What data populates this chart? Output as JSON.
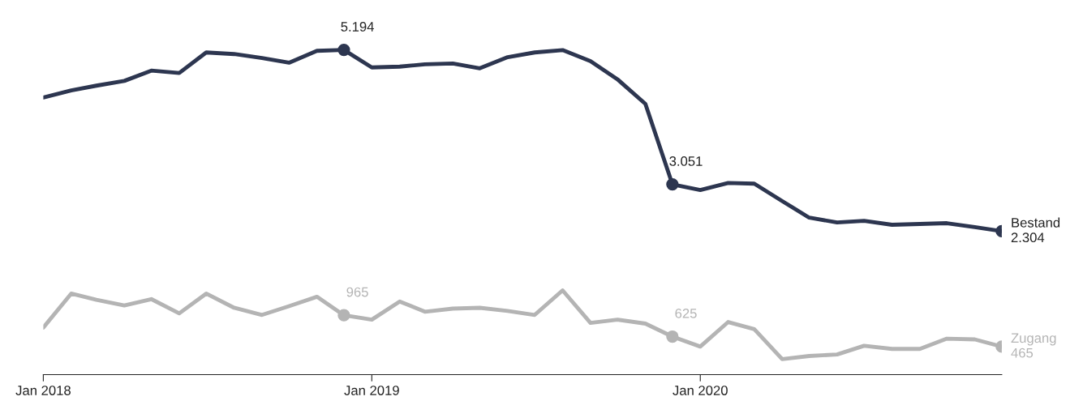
{
  "chart_data": {
    "type": "line",
    "x": [
      "2018-01",
      "2018-02",
      "2018-03",
      "2018-04",
      "2018-05",
      "2018-06",
      "2018-07",
      "2018-08",
      "2018-09",
      "2018-10",
      "2018-11",
      "2018-12",
      "2019-01",
      "2019-02",
      "2019-03",
      "2019-04",
      "2019-05",
      "2019-06",
      "2019-07",
      "2019-08",
      "2019-09",
      "2019-10",
      "2019-11",
      "2019-12",
      "2020-01",
      "2020-02",
      "2020-03",
      "2020-04",
      "2020-05",
      "2020-06",
      "2020-07",
      "2020-08",
      "2020-09",
      "2020-10",
      "2020-11",
      "2020-12"
    ],
    "series": [
      {
        "name": "Bestand",
        "color": "#2d3650",
        "values": [
          4435,
          4549,
          4624,
          4700,
          4864,
          4826,
          5153,
          5128,
          5065,
          4990,
          5179,
          5194,
          4914,
          4927,
          4964,
          4977,
          4901,
          5078,
          5153,
          5191,
          5015,
          4725,
          4334,
          3051,
          2961,
          3074,
          3062,
          2785,
          2520,
          2444,
          2470,
          2407,
          2419,
          2432,
          2369,
          2304
        ],
        "value_labels": [
          null,
          null,
          null,
          null,
          null,
          null,
          null,
          null,
          null,
          null,
          null,
          "5.194",
          null,
          null,
          null,
          null,
          null,
          null,
          null,
          null,
          null,
          null,
          null,
          "3.051",
          null,
          null,
          null,
          null,
          null,
          null,
          null,
          null,
          null,
          null,
          null,
          "2.304"
        ]
      },
      {
        "name": "Zugang",
        "color": "#b4b4b4",
        "values": [
          769,
          1310,
          1210,
          1121,
          1222,
          995,
          1310,
          1084,
          970,
          1109,
          1260,
          965,
          895,
          1184,
          1021,
          1071,
          1084,
          1033,
          970,
          1361,
          844,
          895,
          832,
          625,
          466,
          857,
          743,
          265,
          315,
          340,
          479,
          428,
          428,
          592,
          580,
          465
        ],
        "value_labels": [
          null,
          null,
          null,
          null,
          null,
          null,
          null,
          null,
          null,
          null,
          null,
          "965",
          null,
          null,
          null,
          null,
          null,
          null,
          null,
          null,
          null,
          null,
          null,
          "625",
          null,
          null,
          null,
          null,
          null,
          null,
          null,
          null,
          null,
          null,
          null,
          "465"
        ]
      }
    ],
    "xlim": [
      "2018-01",
      "2020-12"
    ],
    "xticks": [
      {
        "value": "2018-01",
        "label": "Jan 2018"
      },
      {
        "value": "2019-01",
        "label": "Jan 2019"
      },
      {
        "value": "2020-01",
        "label": "Jan 2020"
      }
    ],
    "tick_labels": "x",
    "line_style": "solid",
    "grid": false,
    "legend": false
  }
}
